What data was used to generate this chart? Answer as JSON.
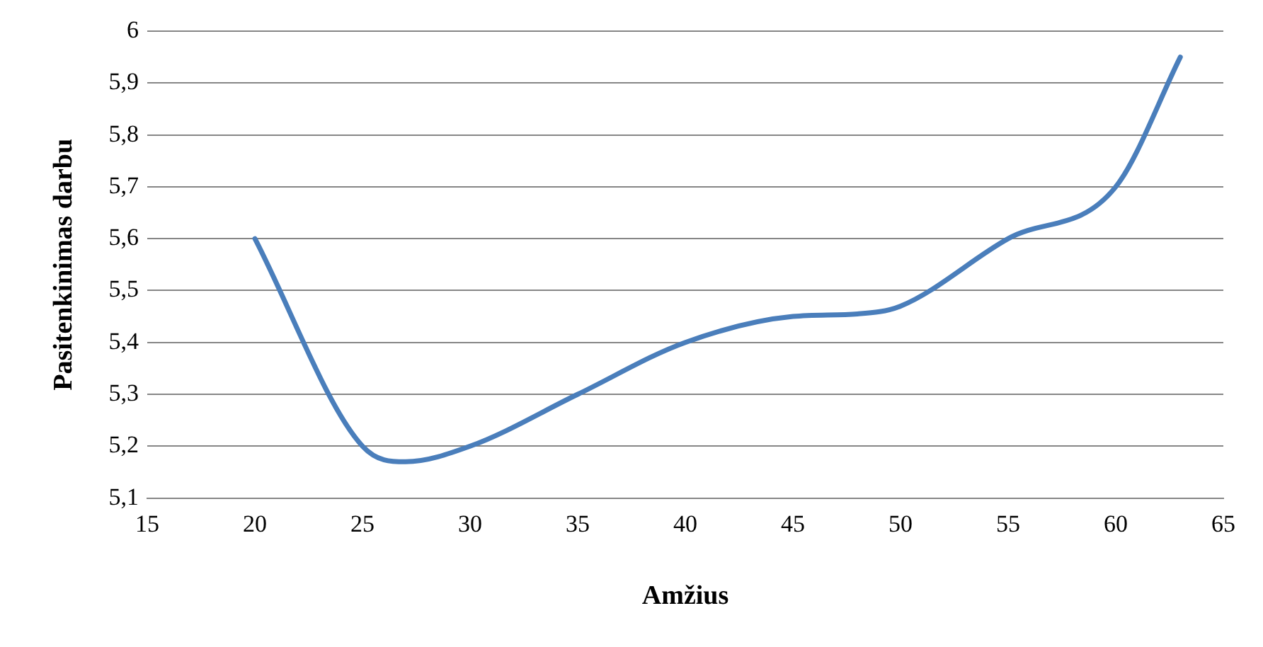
{
  "chart_data": {
    "type": "line",
    "xlabel": "Amžius",
    "ylabel": "Pasitenkinimas darbu",
    "series": [
      {
        "color": "#4a7ebb",
        "x": [
          20,
          25,
          27,
          30,
          35,
          40,
          45,
          48,
          50,
          55,
          60,
          63
        ],
        "values": [
          5.6,
          5.2,
          5.17,
          5.2,
          5.3,
          5.4,
          5.45,
          5.455,
          5.47,
          5.6,
          5.7,
          5.95
        ]
      }
    ],
    "xlim": [
      15,
      65
    ],
    "xticks": [
      15,
      20,
      25,
      30,
      35,
      40,
      45,
      50,
      55,
      60,
      65
    ],
    "ylim": [
      5.1,
      6
    ],
    "yticks": [
      {
        "value": 5.1,
        "label": "5,1"
      },
      {
        "value": 5.2,
        "label": "5,2"
      },
      {
        "value": 5.3,
        "label": "5,3"
      },
      {
        "value": 5.4,
        "label": "5,4"
      },
      {
        "value": 5.5,
        "label": "5,5"
      },
      {
        "value": 5.6,
        "label": "5,6"
      },
      {
        "value": 5.7,
        "label": "5,7"
      },
      {
        "value": 5.8,
        "label": "5,8"
      },
      {
        "value": 5.9,
        "label": "5,9"
      },
      {
        "value": 6,
        "label": "6"
      }
    ],
    "grid": "y",
    "legend": false,
    "marker": "none",
    "line_style": "solid"
  }
}
